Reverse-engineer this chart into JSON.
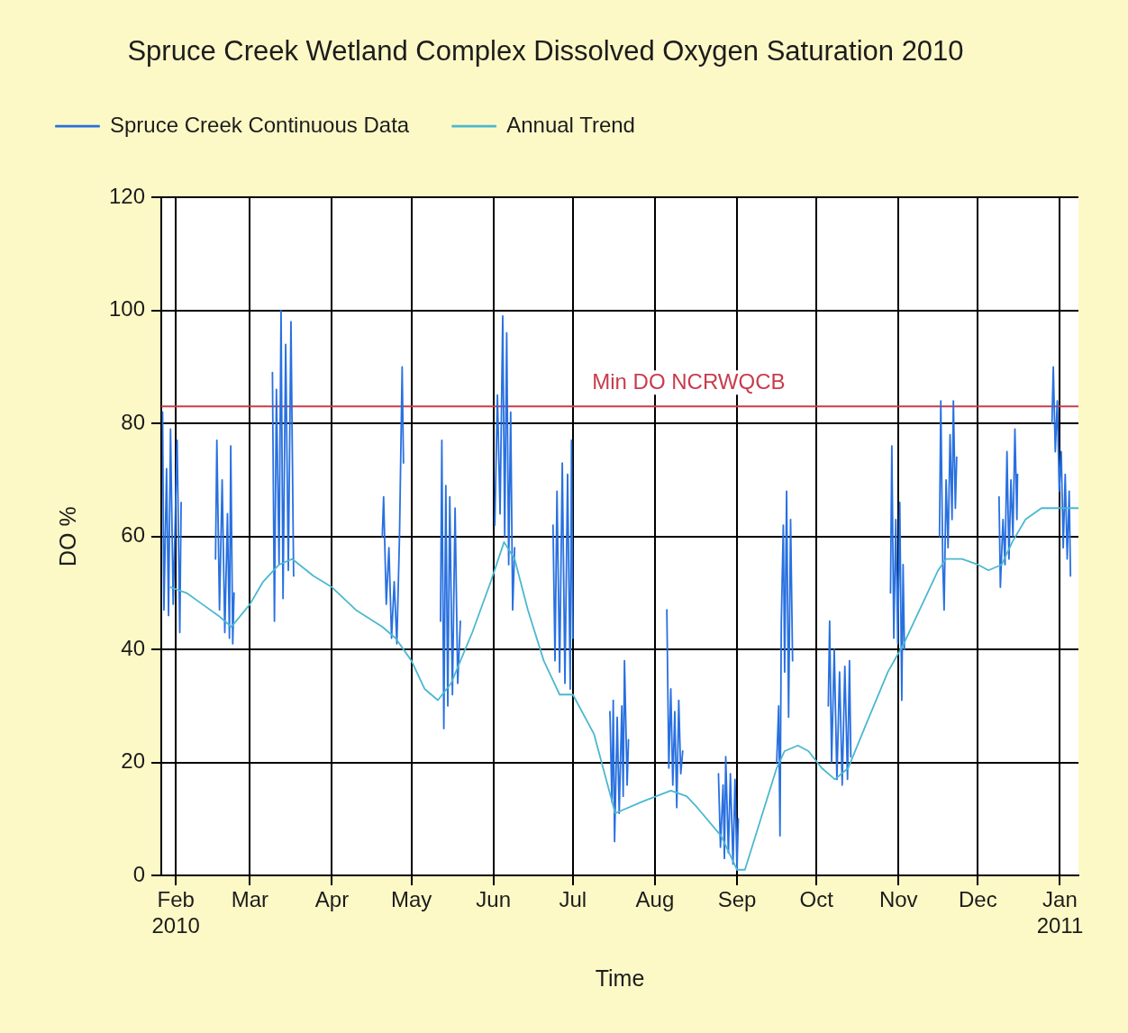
{
  "chart_data": {
    "type": "line",
    "title": "Spruce Creek Wetland Complex Dissolved Oxygen Saturation 2010",
    "xlabel": "Time",
    "ylabel": "DO %",
    "xlim": [
      "2010-01-26T12:00",
      "2011-01-08"
    ],
    "xticks": [
      {
        "value": "2010-02-01",
        "label": "Feb 2010"
      },
      {
        "value": "2010-03-01",
        "label": "Mar"
      },
      {
        "value": "2010-04-01",
        "label": "Apr"
      },
      {
        "value": "2010-05-01",
        "label": "May"
      },
      {
        "value": "2010-06-01",
        "label": "Jun"
      },
      {
        "value": "2010-07-01",
        "label": "Jul"
      },
      {
        "value": "2010-08-01",
        "label": "Aug"
      },
      {
        "value": "2010-09-01",
        "label": "Sep"
      },
      {
        "value": "2010-10-01",
        "label": "Oct"
      },
      {
        "value": "2010-11-01",
        "label": "Nov"
      },
      {
        "value": "2010-12-01",
        "label": "Dec"
      },
      {
        "value": "2011-01-01",
        "label": "Jan 2011"
      }
    ],
    "ylim": [
      0,
      120
    ],
    "yticks": [
      0,
      20,
      40,
      60,
      80,
      100,
      120
    ],
    "grid": true,
    "legend": "top left",
    "marker": "none",
    "line_style": "solid",
    "ref_lines": [
      {
        "axis": "y",
        "value": 83,
        "label": "Min DO NCRWQCB",
        "color": "#c83c4c"
      }
    ],
    "series": [
      {
        "name": "Spruce Creek Continuous Data",
        "color": "#2870e0",
        "x": [
          "2010-01-27T00:00",
          "2010-01-27T12:00",
          "2010-01-28T12:00",
          "2010-01-29T06:00",
          "2010-01-30T00:00",
          "2010-01-31T00:00",
          "2010-02-01T12:00",
          "2010-02-02T12:00",
          "2010-02-03T00:00",
          "2010-02-09T00:00",
          "2010-02-16T00:00",
          "2010-02-16T12:00",
          "2010-02-17T12:00",
          "2010-02-18T12:00",
          "2010-02-19T12:00",
          "2010-02-20T12:00",
          "2010-02-21T06:00",
          "2010-02-21T18:00",
          "2010-02-22T12:00",
          "2010-02-23T00:00",
          "2010-03-02T00:00",
          "2010-03-09T12:00",
          "2010-03-10T06:00",
          "2010-03-11T00:00",
          "2010-03-12T00:00",
          "2010-03-12T18:00",
          "2010-03-13T12:00",
          "2010-03-14T12:00",
          "2010-03-15T12:00",
          "2010-03-16T12:00",
          "2010-03-17T12:00",
          "2010-04-01T00:00",
          "2010-04-20T00:00",
          "2010-04-20T12:00",
          "2010-04-21T12:00",
          "2010-04-22T12:00",
          "2010-04-23T12:00",
          "2010-04-24T12:00",
          "2010-04-25T12:00",
          "2010-04-26T12:00",
          "2010-04-27T12:00",
          "2010-04-28T00:00",
          "2010-05-05T00:00",
          "2010-05-12T00:00",
          "2010-05-12T12:00",
          "2010-05-13T06:00",
          "2010-05-14T00:00",
          "2010-05-14T18:00",
          "2010-05-15T12:00",
          "2010-05-16T12:00",
          "2010-05-17T12:00",
          "2010-05-18T12:00",
          "2010-05-19T12:00",
          "2010-05-25T00:00",
          "2010-06-01T12:00",
          "2010-06-02T12:00",
          "2010-06-03T12:00",
          "2010-06-04T12:00",
          "2010-06-05T06:00",
          "2010-06-06T00:00",
          "2010-06-06T18:00",
          "2010-06-07T12:00",
          "2010-06-08T06:00",
          "2010-06-09T00:00",
          "2010-06-16T00:00",
          "2010-06-23T12:00",
          "2010-06-24T06:00",
          "2010-06-25T00:00",
          "2010-06-26T00:00",
          "2010-06-27T00:00",
          "2010-06-28T00:00",
          "2010-06-29T00:00",
          "2010-06-30T00:00",
          "2010-06-30T12:00",
          "2010-07-01T00:00",
          "2010-07-08T00:00",
          "2010-07-15T00:00",
          "2010-07-15T18:00",
          "2010-07-16T06:00",
          "2010-07-16T18:00",
          "2010-07-17T18:00",
          "2010-07-18T12:00",
          "2010-07-19T12:00",
          "2010-07-20T00:00",
          "2010-07-20T12:00",
          "2010-07-21T12:00",
          "2010-07-22T00:00",
          "2010-07-29T00:00",
          "2010-08-05T12:00",
          "2010-08-06T06:00",
          "2010-08-07T00:00",
          "2010-08-07T18:00",
          "2010-08-08T12:00",
          "2010-08-09T06:00",
          "2010-08-10T00:00",
          "2010-08-10T18:00",
          "2010-08-11T12:00",
          "2010-08-18T00:00",
          "2010-08-25T00:00",
          "2010-08-25T18:00",
          "2010-08-26T18:00",
          "2010-08-27T06:00",
          "2010-08-27T18:00",
          "2010-08-28T18:00",
          "2010-08-29T12:00",
          "2010-08-30T12:00",
          "2010-08-31T06:00",
          "2010-09-01T00:00",
          "2010-09-01T12:00",
          "2010-09-08T00:00",
          "2010-09-16T00:00",
          "2010-09-16T18:00",
          "2010-09-17T06:00",
          "2010-09-17T18:00",
          "2010-09-18T12:00",
          "2010-09-19T00:00",
          "2010-09-19T18:00",
          "2010-09-20T12:00",
          "2010-09-21T06:00",
          "2010-09-22T00:00",
          "2010-09-28T00:00",
          "2010-10-05T12:00",
          "2010-10-06T00:00",
          "2010-10-06T18:00",
          "2010-10-07T18:00",
          "2010-10-08T18:00",
          "2010-10-09T18:00",
          "2010-10-10T18:00",
          "2010-10-11T18:00",
          "2010-10-12T18:00",
          "2010-10-13T12:00",
          "2010-10-14T00:00",
          "2010-10-21T00:00",
          "2010-10-29T00:00",
          "2010-10-29T12:00",
          "2010-10-30T06:00",
          "2010-10-31T00:00",
          "2010-10-31T18:00",
          "2010-11-01T12:00",
          "2010-11-02T06:00",
          "2010-11-02T18:00",
          "2010-11-03T06:00",
          "2010-11-10T00:00",
          "2010-11-16T12:00",
          "2010-11-17T00:00",
          "2010-11-17T18:00",
          "2010-11-18T06:00",
          "2010-11-19T00:00",
          "2010-11-19T18:00",
          "2010-11-20T12:00",
          "2010-11-21T06:00",
          "2010-11-21T18:00",
          "2010-11-22T12:00",
          "2010-11-23T00:00",
          "2010-12-01T00:00",
          "2010-12-09T00:00",
          "2010-12-09T12:00",
          "2010-12-10T12:00",
          "2010-12-11T06:00",
          "2010-12-12T00:00",
          "2010-12-12T18:00",
          "2010-12-13T12:00",
          "2010-12-14T06:00",
          "2010-12-15T00:00",
          "2010-12-15T18:00",
          "2010-12-16T00:00",
          "2010-12-22T00:00",
          "2010-12-29T00:00",
          "2010-12-29T12:00",
          "2010-12-30T06:00",
          "2010-12-31T00:00",
          "2010-12-31T18:00",
          "2011-01-01T12:00",
          "2011-01-02T06:00",
          "2011-01-03T00:00",
          "2011-01-03T18:00",
          "2011-01-04T12:00",
          "2011-01-05T00:00"
        ],
        "values": [
          82,
          47,
          72,
          46,
          79,
          48,
          77,
          43,
          66,
          null,
          56,
          77,
          47,
          70,
          43,
          64,
          42,
          76,
          41,
          50,
          null,
          89,
          45,
          86,
          55,
          100,
          49,
          94,
          54,
          98,
          53,
          null,
          60,
          67,
          48,
          58,
          42,
          52,
          41,
          60,
          90,
          73,
          null,
          45,
          77,
          26,
          69,
          30,
          67,
          32,
          65,
          34,
          45,
          null,
          62,
          85,
          64,
          99,
          60,
          96,
          55,
          82,
          47,
          58,
          null,
          62,
          38,
          68,
          36,
          73,
          34,
          71,
          33,
          77,
          42,
          null,
          29,
          13,
          31,
          6,
          28,
          11,
          30,
          14,
          38,
          16,
          24,
          null,
          47,
          19,
          33,
          16,
          29,
          12,
          31,
          18,
          22,
          null,
          18,
          5,
          16,
          3,
          21,
          4,
          18,
          2,
          17,
          1,
          10,
          null,
          20,
          30,
          7,
          45,
          62,
          36,
          68,
          28,
          63,
          38,
          null,
          30,
          45,
          20,
          40,
          17,
          36,
          16,
          37,
          17,
          38,
          21,
          null,
          50,
          76,
          42,
          63,
          41,
          66,
          31,
          55,
          40,
          null,
          60,
          84,
          55,
          47,
          70,
          58,
          78,
          63,
          84,
          65,
          74,
          null,
          67,
          51,
          63,
          55,
          75,
          56,
          70,
          60,
          79,
          63,
          71,
          null,
          80,
          90,
          75,
          84,
          68,
          75,
          58,
          71,
          56,
          68,
          53
        ]
      },
      {
        "name": "Annual Trend",
        "color": "#4cb8d0",
        "x": [
          "2010-01-30",
          "2010-02-05",
          "2010-02-11",
          "2010-02-17",
          "2010-02-22",
          "2010-03-01",
          "2010-03-06",
          "2010-03-12",
          "2010-03-17",
          "2010-03-25",
          "2010-04-01",
          "2010-04-10",
          "2010-04-20",
          "2010-04-25",
          "2010-05-01",
          "2010-05-06",
          "2010-05-11",
          "2010-05-16",
          "2010-05-24",
          "2010-05-31",
          "2010-06-05",
          "2010-06-09",
          "2010-06-14",
          "2010-06-20",
          "2010-06-26",
          "2010-07-01",
          "2010-07-09",
          "2010-07-17",
          "2010-07-27",
          "2010-08-07",
          "2010-08-13",
          "2010-08-17",
          "2010-08-26",
          "2010-09-01",
          "2010-09-04",
          "2010-09-10",
          "2010-09-16",
          "2010-09-19",
          "2010-09-24",
          "2010-09-28",
          "2010-10-03",
          "2010-10-08",
          "2010-10-13",
          "2010-10-20",
          "2010-10-28",
          "2010-11-03",
          "2010-11-10",
          "2010-11-16",
          "2010-11-19",
          "2010-11-25",
          "2010-12-01",
          "2010-12-05",
          "2010-12-10",
          "2010-12-14",
          "2010-12-19",
          "2010-12-25",
          "2011-01-01",
          "2011-01-08"
        ],
        "values": [
          51,
          50,
          48,
          46,
          44,
          48,
          52,
          55,
          56,
          53,
          51,
          47,
          44,
          42,
          38,
          33,
          31,
          34,
          43,
          52,
          59,
          56,
          47,
          38,
          32,
          32,
          25,
          11,
          13,
          15,
          14,
          12,
          7,
          1,
          1,
          10,
          19,
          22,
          23,
          22,
          19,
          17,
          19,
          27,
          36,
          41,
          48,
          54,
          56,
          56,
          55,
          54,
          55,
          59,
          63,
          65,
          65,
          65
        ]
      }
    ]
  }
}
